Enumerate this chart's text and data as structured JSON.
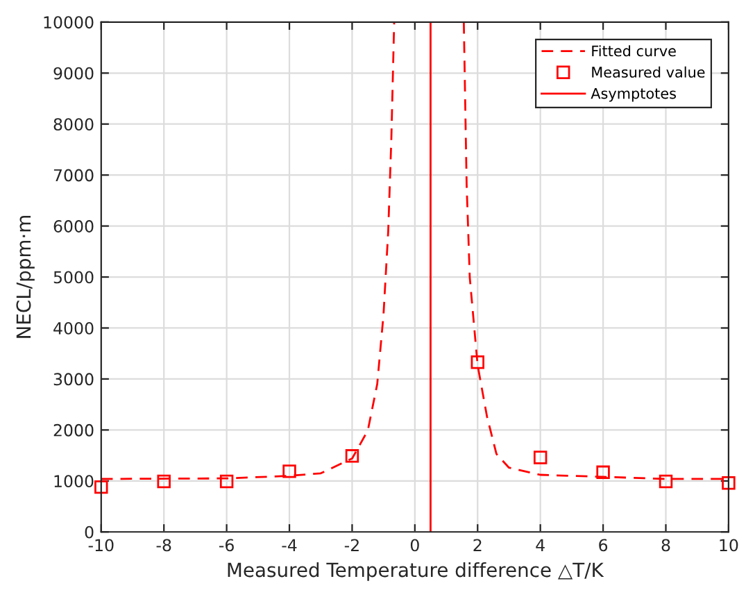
{
  "chart_data": {
    "type": "line",
    "xlabel": "Measured Temperature difference △T/K",
    "ylabel": "NECL/ppm·m",
    "series": [
      {
        "name": "Fitted curve",
        "color": "#ff0000",
        "line_style": "dashed",
        "marker": "none",
        "x": [
          -10,
          -6,
          -4,
          -3,
          -2,
          -1.5,
          -1.2,
          -1.0,
          -0.85,
          -0.75,
          -0.66,
          null,
          1.56,
          1.65,
          1.75,
          2,
          2.3,
          2.6,
          3,
          4,
          6,
          8,
          10
        ],
        "values": [
          1040,
          1050,
          1100,
          1150,
          1440,
          1990,
          2900,
          4260,
          5890,
          7710,
          10000,
          null,
          10000,
          6810,
          4990,
          3270,
          2260,
          1530,
          1260,
          1120,
          1080,
          1040,
          1040
        ]
      },
      {
        "name": "Measured value",
        "type": "scatter",
        "color": "#ff0000",
        "marker": "square",
        "x": [
          -10,
          -8,
          -6,
          -4,
          -2,
          2,
          4,
          6,
          8,
          10
        ],
        "values": [
          880,
          990,
          990,
          1190,
          1490,
          3330,
          1460,
          1170,
          990,
          960
        ]
      },
      {
        "name": "Asymptotes",
        "color": "#ff0000",
        "line_style": "solid",
        "marker": "none",
        "x": [
          0.5,
          0.5
        ],
        "values": [
          0,
          10000
        ]
      }
    ],
    "xlim": [
      -10,
      10
    ],
    "xticks": [
      -10,
      -8,
      -6,
      -4,
      -2,
      0,
      2,
      4,
      6,
      8,
      10
    ],
    "ylim": [
      0,
      10000
    ],
    "yticks": [
      0,
      1000,
      2000,
      3000,
      4000,
      5000,
      6000,
      7000,
      8000,
      9000,
      10000
    ],
    "grid": true,
    "legend": "top right"
  }
}
